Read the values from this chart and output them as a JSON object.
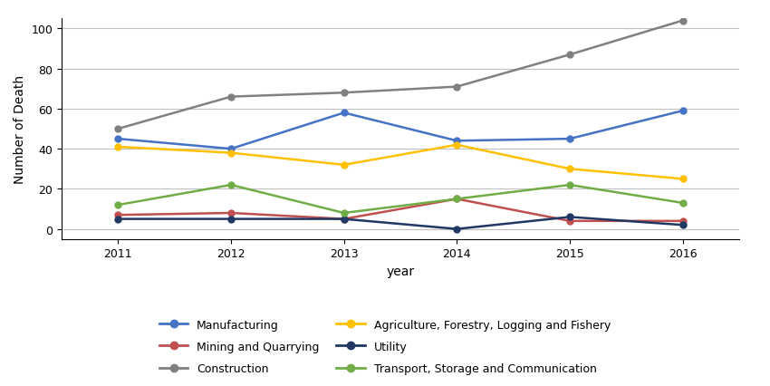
{
  "years": [
    2011,
    2012,
    2013,
    2014,
    2015,
    2016
  ],
  "series": {
    "Manufacturing": {
      "values": [
        45,
        40,
        58,
        44,
        45,
        59
      ],
      "color": "#4472C4",
      "marker": "o"
    },
    "Mining and Quarrying": {
      "values": [
        7,
        8,
        5,
        15,
        4,
        4
      ],
      "color": "#C0504D",
      "marker": "o"
    },
    "Construction": {
      "values": [
        50,
        66,
        68,
        71,
        87,
        104
      ],
      "color": "#808080",
      "marker": "o"
    },
    "Agriculture, Forestry, Logging and Fishery": {
      "values": [
        41,
        38,
        32,
        42,
        30,
        25
      ],
      "color": "#FFC000",
      "marker": "o"
    },
    "Utility": {
      "values": [
        5,
        5,
        5,
        0,
        6,
        2
      ],
      "color": "#1F3864",
      "marker": "o"
    },
    "Transport, Storage and Communication": {
      "values": [
        12,
        22,
        8,
        15,
        22,
        13
      ],
      "color": "#70AD47",
      "marker": "o"
    }
  },
  "xlabel": "year",
  "ylabel": "Number of Death",
  "ylim": [
    -5,
    105
  ],
  "yticks": [
    0,
    20,
    40,
    60,
    80,
    100
  ],
  "background_color": "#FFFFFF",
  "grid_color": "#BFBFBF",
  "legend_order": [
    "Manufacturing",
    "Mining and Quarrying",
    "Construction",
    "Agriculture, Forestry, Logging and Fishery",
    "Utility",
    "Transport, Storage and Communication"
  ]
}
